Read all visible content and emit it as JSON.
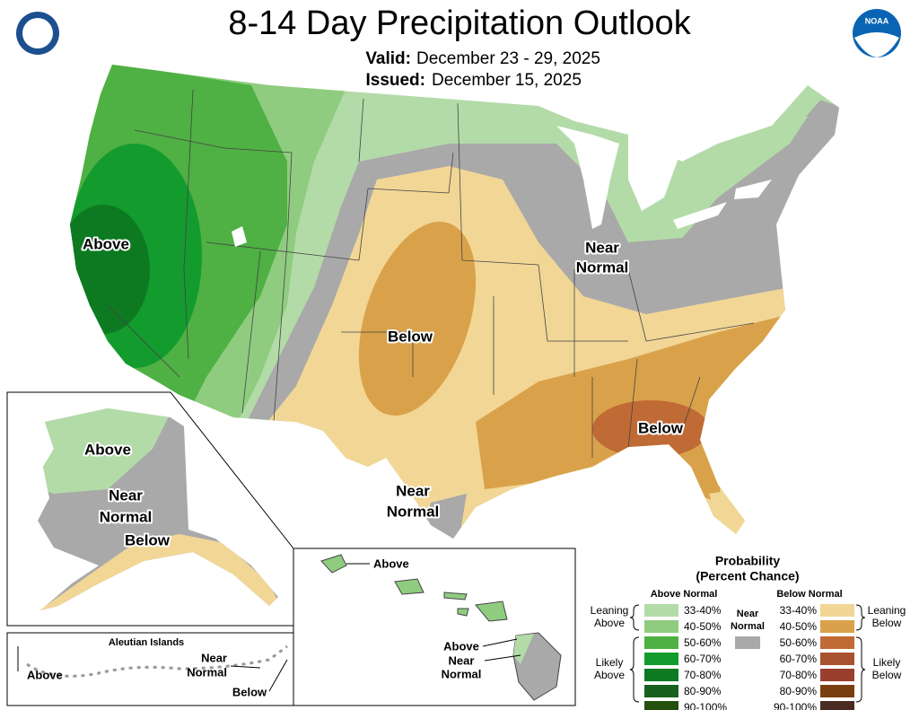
{
  "header": {
    "title": "8-14 Day Precipitation Outlook",
    "valid_label": "Valid:",
    "valid": "December 23 - 29, 2025",
    "issued_label": "Issued:",
    "issued": "December 15, 2025",
    "logo_text": "NOAA"
  },
  "conus_labels": [
    "Above",
    [
      "Near",
      "Normal"
    ],
    "Below",
    "Below",
    [
      "Near",
      "Normal"
    ]
  ],
  "alaska_labels": [
    "Above",
    [
      "Near",
      "Normal"
    ],
    "Below"
  ],
  "aleutian": {
    "title": "Aleutian Islands",
    "labels": [
      "Above",
      [
        "Near",
        "Normal"
      ],
      "Below"
    ]
  },
  "hawaii_labels": [
    "Above",
    "Above",
    [
      "Near",
      "Normal"
    ]
  ],
  "legend": {
    "title": "Probability",
    "subtitle": "(Percent Chance)",
    "above_header": "Above Normal",
    "below_header": "Below Normal",
    "near": [
      "Near",
      "Normal"
    ],
    "near_color": "#a9a9a9",
    "above_groups": [
      [
        "Leaning",
        "Above"
      ],
      [
        "Likely",
        "Above"
      ]
    ],
    "below_groups": [
      [
        "Leaning",
        "Below"
      ],
      [
        "Likely",
        "Below"
      ]
    ],
    "above_bins": [
      {
        "label": "33-40%",
        "color": "#b3dba8"
      },
      {
        "label": "40-50%",
        "color": "#8fcc80"
      },
      {
        "label": "50-60%",
        "color": "#4fb043"
      },
      {
        "label": "60-70%",
        "color": "#139b2e"
      },
      {
        "label": "70-80%",
        "color": "#0d7a22"
      },
      {
        "label": "80-90%",
        "color": "#17601d"
      },
      {
        "label": "90-100%",
        "color": "#24500f"
      }
    ],
    "below_bins": [
      {
        "label": "33-40%",
        "color": "#f2d696"
      },
      {
        "label": "40-50%",
        "color": "#d9a24a"
      },
      {
        "label": "50-60%",
        "color": "#c06a35"
      },
      {
        "label": "60-70%",
        "color": "#a9522f"
      },
      {
        "label": "70-80%",
        "color": "#9a3f2d"
      },
      {
        "label": "80-90%",
        "color": "#7a3f0e"
      },
      {
        "label": "90-100%",
        "color": "#4b2a22"
      }
    ]
  }
}
